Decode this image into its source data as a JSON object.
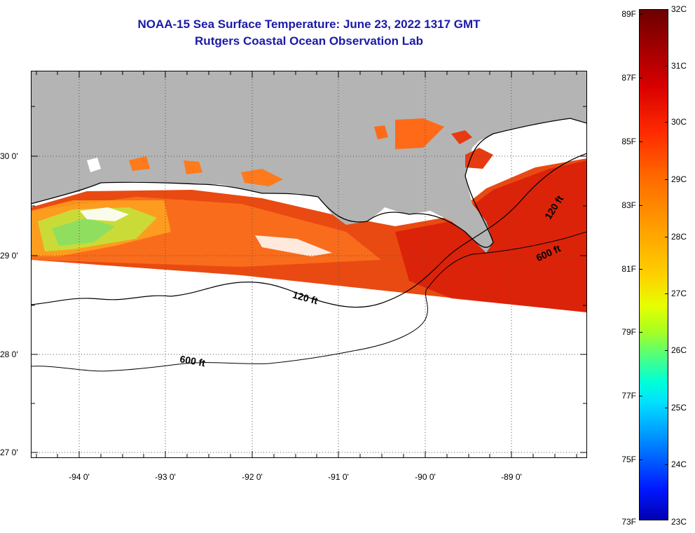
{
  "title": {
    "line1": "NOAA-15 Sea Surface Temperature:  June 23, 2022 1317 GMT",
    "line2": "Rutgers Coastal Ocean Observation Lab"
  },
  "map": {
    "lat_labels": [
      "30 0'",
      "29 0'",
      "28 0'",
      "27 0'"
    ],
    "lon_labels": [
      "-94 0'",
      "-93 0'",
      "-92 0'",
      "-91 0'",
      "-90 0'",
      "-89 0'"
    ],
    "contours": [
      "120 ft",
      "600 ft",
      "120 ft",
      "600 ft"
    ],
    "colors": {
      "land": "#b4b4b4",
      "warm": "#e83a10",
      "hot": "#d01808",
      "orange": "#ff7a1a",
      "yellow_green": "#b8f040",
      "green": "#78e070"
    }
  },
  "colorbar": {
    "fahrenheit": [
      "89F",
      "87F",
      "85F",
      "83F",
      "81F",
      "79F",
      "77F",
      "75F",
      "73F"
    ],
    "celsius": [
      "32C",
      "31C",
      "30C",
      "29C",
      "28C",
      "27C",
      "26C",
      "25C",
      "24C",
      "23C"
    ]
  }
}
